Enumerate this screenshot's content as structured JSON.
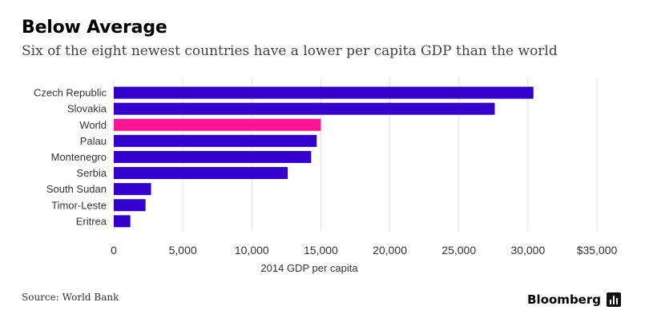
{
  "title": "Below Average",
  "subtitle": "Six of the eight newest countries have a lower per capita GDP than the world",
  "source": "Source: World Bank",
  "brand": "Bloomberg",
  "colors": {
    "bar": "#3300cc",
    "highlight": "#ff1493",
    "grid": "#e3e3e3",
    "label": "#333333"
  },
  "chart_data": {
    "type": "bar",
    "orientation": "horizontal",
    "categories": [
      "Czech Republic",
      "Slovakia",
      "World",
      "Palau",
      "Montenegro",
      "Serbia",
      "South Sudan",
      "Timor-Leste",
      "Eritrea"
    ],
    "values": [
      30400,
      27600,
      15000,
      14700,
      14300,
      12600,
      2700,
      2300,
      1200
    ],
    "highlight": [
      "World"
    ],
    "xlim": [
      0,
      35000
    ],
    "ticks": [
      0,
      5000,
      10000,
      15000,
      20000,
      25000,
      30000,
      35000
    ],
    "tick_labels": [
      "0",
      "5,000",
      "10,000",
      "15,000",
      "20,000",
      "25,000",
      "30,000",
      "$35,000"
    ],
    "xlabel": "2014 GDP per capita",
    "ylabel": "",
    "grid": true
  }
}
